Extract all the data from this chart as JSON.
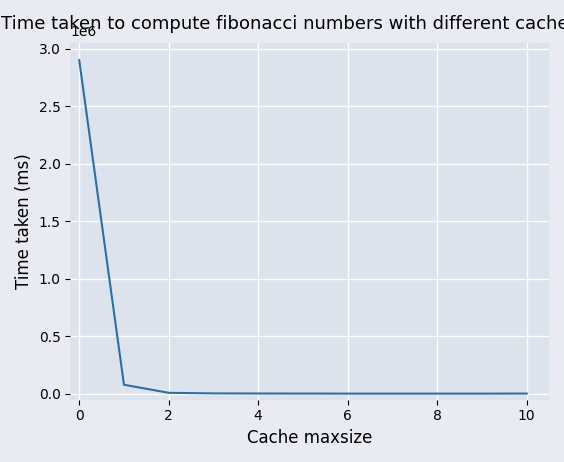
{
  "title": "Time taken to compute fibonacci numbers with different cache sizes",
  "xlabel": "Cache maxsize",
  "ylabel": "Time taken (ms)",
  "x": [
    0,
    1,
    2,
    3,
    4,
    5,
    6,
    7,
    8,
    9,
    10
  ],
  "y": [
    2900000,
    80000,
    10000,
    5000,
    4000,
    3500,
    3000,
    3000,
    3000,
    3000,
    3500
  ],
  "line_color": "#2a6fa8",
  "bg_color": "#dde3ed",
  "grid_color": "#ffffff",
  "fig_bg_color": "#eaeaf2",
  "xlim": [
    -0.2,
    10.5
  ],
  "ylim": [
    -50000,
    3050000
  ],
  "xticks": [
    0,
    2,
    4,
    6,
    8,
    10
  ],
  "yticks": [
    0,
    500000,
    1000000,
    1500000,
    2000000,
    2500000,
    3000000
  ],
  "ytick_labels": [
    "0.0",
    "0.5",
    "1.0",
    "1.5",
    "2.0",
    "2.5",
    "3.0"
  ],
  "offset_text": "1e6",
  "title_fontsize": 13,
  "label_fontsize": 12
}
